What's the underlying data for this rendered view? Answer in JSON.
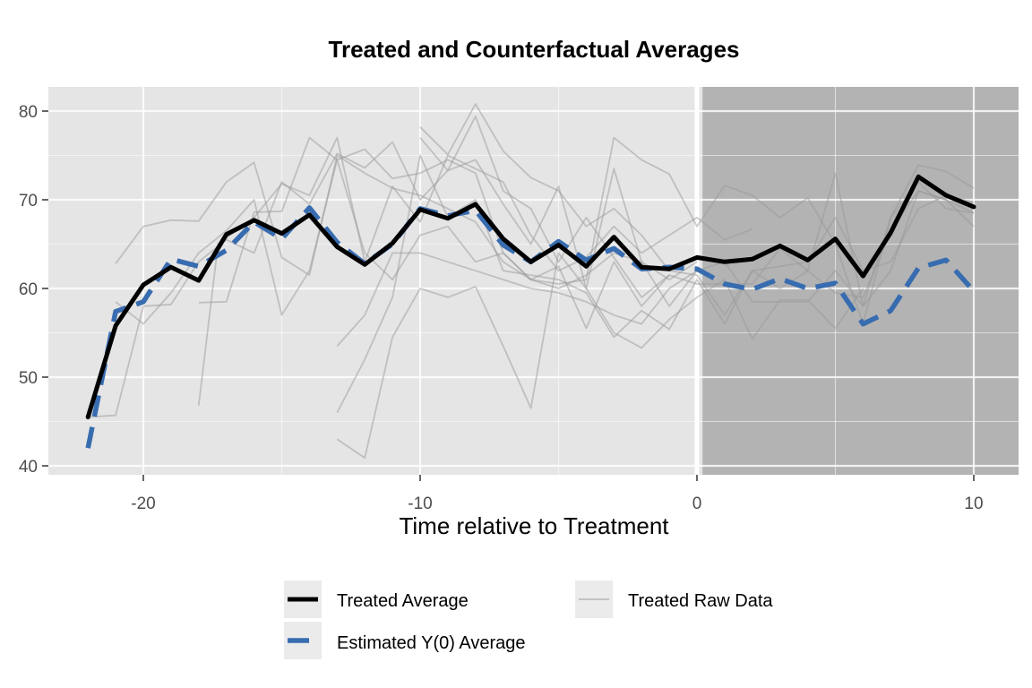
{
  "chart_data": {
    "type": "line",
    "title": "Treated and Counterfactual Averages",
    "xlabel": "Time relative to Treatment",
    "ylabel": "",
    "xlim": [
      -23.3,
      11.5
    ],
    "ylim": [
      39,
      82.9
    ],
    "x_ticks": [
      -20,
      -10,
      0,
      10
    ],
    "x_tick_labels": [
      "-20",
      "-10",
      "0",
      "10"
    ],
    "y_ticks": [
      40,
      50,
      60,
      70,
      80
    ],
    "y_tick_labels": [
      "40",
      "50",
      "60",
      "70",
      "80"
    ],
    "grid": true,
    "treatment_time": 0,
    "shaded_region": {
      "from": 0.2,
      "to": 11.5,
      "color": "#b3b3b3"
    },
    "colors": {
      "panel": "#e5e5e5",
      "grid": "#ffffff",
      "treated_average": "#000000",
      "estimated_y0": "#386cb0",
      "raw_data": "#999999"
    },
    "legend": {
      "placement": "bottom",
      "entries": [
        {
          "label": "Treated Average",
          "style": "solid-thick-black"
        },
        {
          "label": "Treated Raw Data",
          "style": "solid-thin-grey"
        },
        {
          "label": "Estimated Y(0) Average",
          "style": "dashed-thick-blue"
        }
      ]
    },
    "series": [
      {
        "name": "Treated Average",
        "x": [
          -22,
          -21,
          -20,
          -19,
          -18,
          -17,
          -16,
          -15,
          -14,
          -13,
          -12,
          -11,
          -10,
          -9,
          -8,
          -7,
          -6,
          -5,
          -4,
          -3,
          -2,
          -1,
          0,
          1,
          2,
          3,
          4,
          5,
          6,
          7,
          8,
          9,
          10
        ],
        "values": [
          45.5,
          55.8,
          60.4,
          62.4,
          60.9,
          66.1,
          67.7,
          66.2,
          68.3,
          64.7,
          62.7,
          65.1,
          68.9,
          67.9,
          69.5,
          65.6,
          63.0,
          64.9,
          62.5,
          65.8,
          62.4,
          62.2,
          63.5,
          63.0,
          63.3,
          64.8,
          63.2,
          65.6,
          61.4,
          66.3,
          72.6,
          70.5,
          69.2
        ]
      },
      {
        "name": "Estimated Y(0) Average",
        "x": [
          -22,
          -21,
          -20,
          -19,
          -18,
          -17,
          -16,
          -15,
          -14,
          -13,
          -12,
          -11,
          -10,
          -9,
          -8,
          -7,
          -6,
          -5,
          -4,
          -3,
          -2,
          -1,
          0,
          1,
          2,
          3,
          4,
          5,
          6,
          7,
          8,
          9,
          10
        ],
        "values": [
          42.0,
          57.4,
          58.5,
          63.3,
          62.5,
          64.3,
          67.5,
          65.6,
          69.1,
          65.2,
          62.8,
          65.0,
          69.0,
          68.2,
          68.8,
          64.9,
          63.0,
          65.3,
          63.2,
          64.5,
          62.2,
          62.4,
          62.2,
          60.5,
          59.9,
          61.1,
          60.0,
          60.6,
          56.0,
          57.5,
          62.3,
          63.2,
          59.7
        ]
      }
    ],
    "raw_series": [
      {
        "x": [
          -22,
          -21,
          -20,
          -19,
          -18,
          -17,
          -16,
          -15,
          -14,
          -13,
          -12,
          -11,
          -10,
          -9,
          -8,
          -7,
          -6,
          -5,
          -4,
          -3,
          -2,
          -1,
          0
        ],
        "values": [
          45.5,
          45.7,
          58.0,
          58.2,
          63.0,
          65.5,
          64.0,
          72.0,
          69.5,
          75.2,
          73.6,
          76.5,
          70.0,
          73.3,
          74.5,
          69.5,
          65.0,
          71.5,
          60.0,
          73.5,
          63.0,
          58.0,
          62.0
        ]
      },
      {
        "x": [
          -21,
          -20,
          -19,
          -18,
          -17,
          -16,
          -15,
          -14,
          -13,
          -12,
          -11,
          -10,
          -9,
          -8,
          -7,
          -6,
          -5,
          -4,
          -3,
          -2,
          -1,
          0,
          1,
          2,
          3,
          4,
          5,
          6,
          7,
          8,
          9,
          10
        ],
        "values": [
          62.8,
          67.0,
          67.7,
          67.6,
          72.0,
          74.2,
          63.5,
          61.5,
          75.0,
          73.0,
          71.3,
          70.5,
          69.0,
          67.5,
          63.0,
          61.0,
          60.5,
          61.0,
          77.0,
          74.5,
          72.9,
          67.0,
          71.6,
          70.5,
          68.0,
          70.2,
          65.0,
          56.0,
          68.0,
          73.9,
          73.2,
          71.3
        ]
      },
      {
        "x": [
          -21,
          -20,
          -19,
          -18,
          -17,
          -16,
          -15,
          -14,
          -13,
          -12,
          -11,
          -10,
          -9,
          -8,
          -7,
          -6,
          -5,
          -4,
          -3,
          -2,
          -1,
          0
        ],
        "values": [
          58.5,
          56.0,
          59.5,
          64.0,
          66.5,
          70.0,
          57.0,
          62.0,
          74.5,
          64.0,
          61.0,
          66.0,
          67.0,
          63.0,
          64.0,
          61.0,
          60.0,
          61.5,
          64.0,
          63.0,
          61.0,
          63.0
        ]
      },
      {
        "x": [
          -18,
          -17.3,
          -16,
          -15,
          -14,
          -13,
          -12,
          -11,
          -10,
          -9,
          -8,
          -7,
          -6,
          -5,
          -4,
          -3,
          -2,
          -1,
          0,
          1,
          2
        ],
        "values": [
          46.8,
          65.0,
          68.0,
          71.8,
          70.5,
          77.0,
          63.0,
          71.5,
          67.5,
          75.0,
          73.5,
          72.0,
          66.0,
          62.0,
          63.5,
          67.0,
          64.0,
          66.0,
          68.0,
          65.5,
          66.7
        ]
      },
      {
        "x": [
          -18,
          -17,
          -16,
          -15,
          -14,
          -13,
          -12,
          -11,
          -10,
          -9,
          -8,
          -7,
          -6,
          -5,
          -4,
          -3,
          -2,
          -1
        ],
        "values": [
          58.4,
          58.5,
          68.6,
          68.7,
          77.0,
          74.5,
          75.7,
          72.4,
          73.0,
          74.5,
          73.0,
          64.0,
          61.0,
          62.5,
          55.5,
          63.0,
          58.0,
          61.5
        ]
      },
      {
        "x": [
          -13,
          -12,
          -11,
          -10,
          -9,
          -8,
          -7,
          -6,
          -5,
          -4,
          -3,
          -2,
          -1,
          0,
          1,
          2,
          3,
          4,
          5,
          6,
          7,
          8,
          9,
          10
        ],
        "values": [
          53.5,
          57.0,
          64.0,
          64.0,
          63.0,
          62.0,
          61.0,
          60.0,
          59.5,
          58.5,
          57.0,
          56.0,
          60.0,
          62.0,
          63.0,
          58.5,
          58.5,
          58.5,
          62.0,
          58.0,
          68.0,
          72.0,
          69.0,
          68.5
        ]
      },
      {
        "x": [
          -13,
          -12,
          -11,
          -10,
          -9,
          -8,
          -7,
          -6,
          -5,
          -4,
          -3,
          -2,
          -1,
          0,
          1,
          2,
          3,
          4,
          5,
          6,
          7,
          8,
          9,
          10
        ],
        "values": [
          46.0,
          52.0,
          59.0,
          75.0,
          68.0,
          70.0,
          62.0,
          61.5,
          61.0,
          59.5,
          54.5,
          57.5,
          55.4,
          61.0,
          56.0,
          62.0,
          60.0,
          62.0,
          59.5,
          59.0,
          66.5,
          71.0,
          70.0,
          67.0
        ]
      },
      {
        "x": [
          -13,
          -12,
          -11,
          -10,
          -9,
          -8,
          -7,
          -6,
          -5,
          -4,
          -3,
          -2,
          -1,
          0,
          1,
          2,
          3,
          4,
          5,
          6
        ],
        "values": [
          43.0,
          40.9,
          54.5,
          60.0,
          59.0,
          60.2,
          53.5,
          46.5,
          64.0,
          60.0,
          55.0,
          53.3,
          56.5,
          59.0,
          61.0,
          54.3,
          58.7,
          58.7,
          55.5,
          60.0
        ]
      },
      {
        "x": [
          -10,
          -9,
          -8,
          -7,
          -6,
          -5,
          -4,
          -3,
          -2,
          -1,
          0,
          1,
          2,
          3,
          4,
          5,
          6,
          7,
          8,
          9,
          10
        ],
        "values": [
          78.2,
          75.1,
          80.8,
          75.5,
          72.5,
          71.0,
          67.0,
          69.0,
          66.0,
          62.0,
          61.5,
          57.0,
          62.0,
          62.5,
          63.0,
          68.0,
          62.0,
          63.0,
          69.0,
          70.5,
          69.7
        ]
      },
      {
        "x": [
          -10,
          -9,
          -8,
          -7,
          -6,
          -5,
          -4,
          -3,
          -2,
          -1,
          0,
          1,
          2,
          3,
          4,
          5,
          6,
          7,
          8,
          9,
          10
        ],
        "values": [
          77.0,
          73.3,
          79.4,
          71.0,
          69.0,
          63.0,
          68.0,
          63.5,
          59.0,
          61.5,
          60.5,
          60.5,
          60.5,
          64.5,
          62.0,
          73.0,
          58.0,
          62.0,
          71.0,
          70.0,
          68.5
        ]
      }
    ]
  }
}
